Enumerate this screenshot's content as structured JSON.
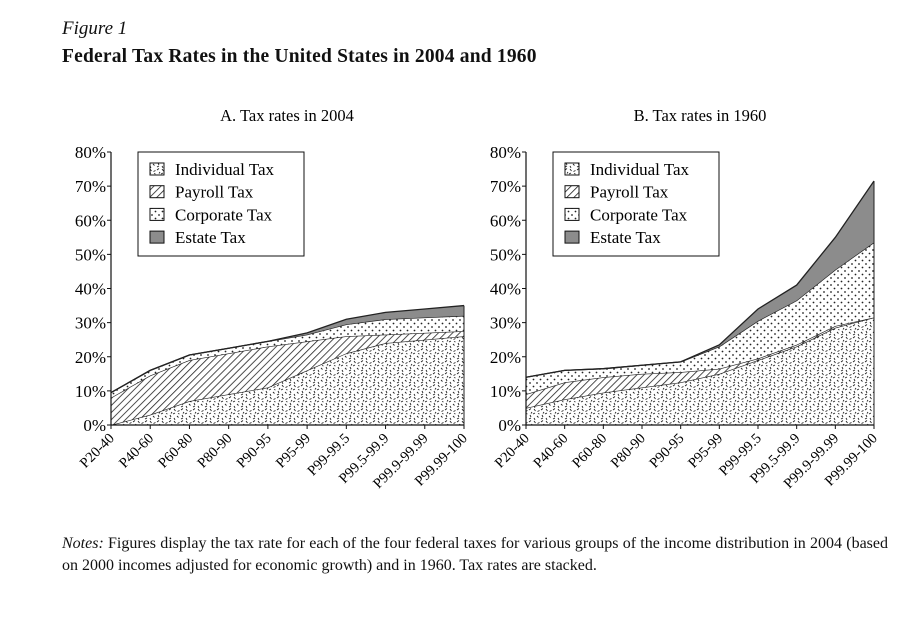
{
  "figure": {
    "label": "Figure 1",
    "title": "Federal Tax Rates in the United States in 2004 and 1960",
    "notes_label": "Notes:",
    "notes_text": " Figures display the tax rate for each of the four federal taxes for various groups of the income distribution in 2004 (based on 2000 incomes adjusted for economic growth) and in 1960. Tax rates are stacked."
  },
  "chart_data": [
    {
      "type": "area",
      "stacked": true,
      "title": "A.  Tax rates in 2004",
      "categories": [
        "P20-40",
        "P40-60",
        "P60-80",
        "P80-90",
        "P90-95",
        "P95-99",
        "P99-99.5",
        "P99.5-99.9",
        "P99.9-99.99",
        "P99.99-100"
      ],
      "ylim": [
        0,
        80
      ],
      "yticks": [
        "0%",
        "10%",
        "20%",
        "30%",
        "40%",
        "50%",
        "60%",
        "70%",
        "80%"
      ],
      "grid": false,
      "legend_position": "top-left",
      "series": [
        {
          "name": "Individual Tax",
          "pattern": "random-dashes",
          "values": [
            -2,
            3,
            7,
            9,
            11,
            16,
            21,
            24,
            25,
            26
          ]
        },
        {
          "name": "Payroll Tax",
          "pattern": "diagonal-hatch",
          "values": [
            10,
            11.5,
            12,
            12,
            12,
            8.5,
            5,
            2.5,
            2,
            1.5
          ]
        },
        {
          "name": "Corporate Tax",
          "pattern": "dots",
          "values": [
            1.5,
            1.5,
            1.5,
            1.5,
            1.5,
            2,
            3.5,
            4.5,
            4.5,
            4.5
          ]
        },
        {
          "name": "Estate Tax",
          "pattern": "solid-gray",
          "color": "#8c8c8c",
          "values": [
            0,
            0,
            0,
            0,
            0,
            0.5,
            1.5,
            2,
            2.5,
            3
          ]
        }
      ]
    },
    {
      "type": "area",
      "stacked": true,
      "title": "B.  Tax rates in 1960",
      "categories": [
        "P20-40",
        "P40-60",
        "P60-80",
        "P80-90",
        "P90-95",
        "P95-99",
        "P99-99.5",
        "P99.5-99.9",
        "P99.9-99.99",
        "P99.99-100"
      ],
      "ylim": [
        0,
        80
      ],
      "yticks": [
        "0%",
        "10%",
        "20%",
        "30%",
        "40%",
        "50%",
        "60%",
        "70%",
        "80%"
      ],
      "grid": false,
      "legend_position": "top-left",
      "series": [
        {
          "name": "Individual Tax",
          "pattern": "random-dashes",
          "values": [
            5,
            7.5,
            9.5,
            11,
            12.5,
            15,
            19,
            23,
            28.5,
            31.5
          ]
        },
        {
          "name": "Payroll Tax",
          "pattern": "diagonal-hatch",
          "values": [
            4,
            5,
            4.5,
            4,
            3,
            1.5,
            0.5,
            0.5,
            0.5,
            0
          ]
        },
        {
          "name": "Corporate Tax",
          "pattern": "dots",
          "values": [
            5,
            3.5,
            2.5,
            2.5,
            3,
            6.5,
            11,
            13,
            16.5,
            22
          ]
        },
        {
          "name": "Estate Tax",
          "pattern": "solid-gray",
          "color": "#8c8c8c",
          "values": [
            0,
            0,
            0,
            0,
            0,
            0.5,
            3.5,
            4.5,
            9.5,
            18
          ]
        }
      ]
    }
  ]
}
